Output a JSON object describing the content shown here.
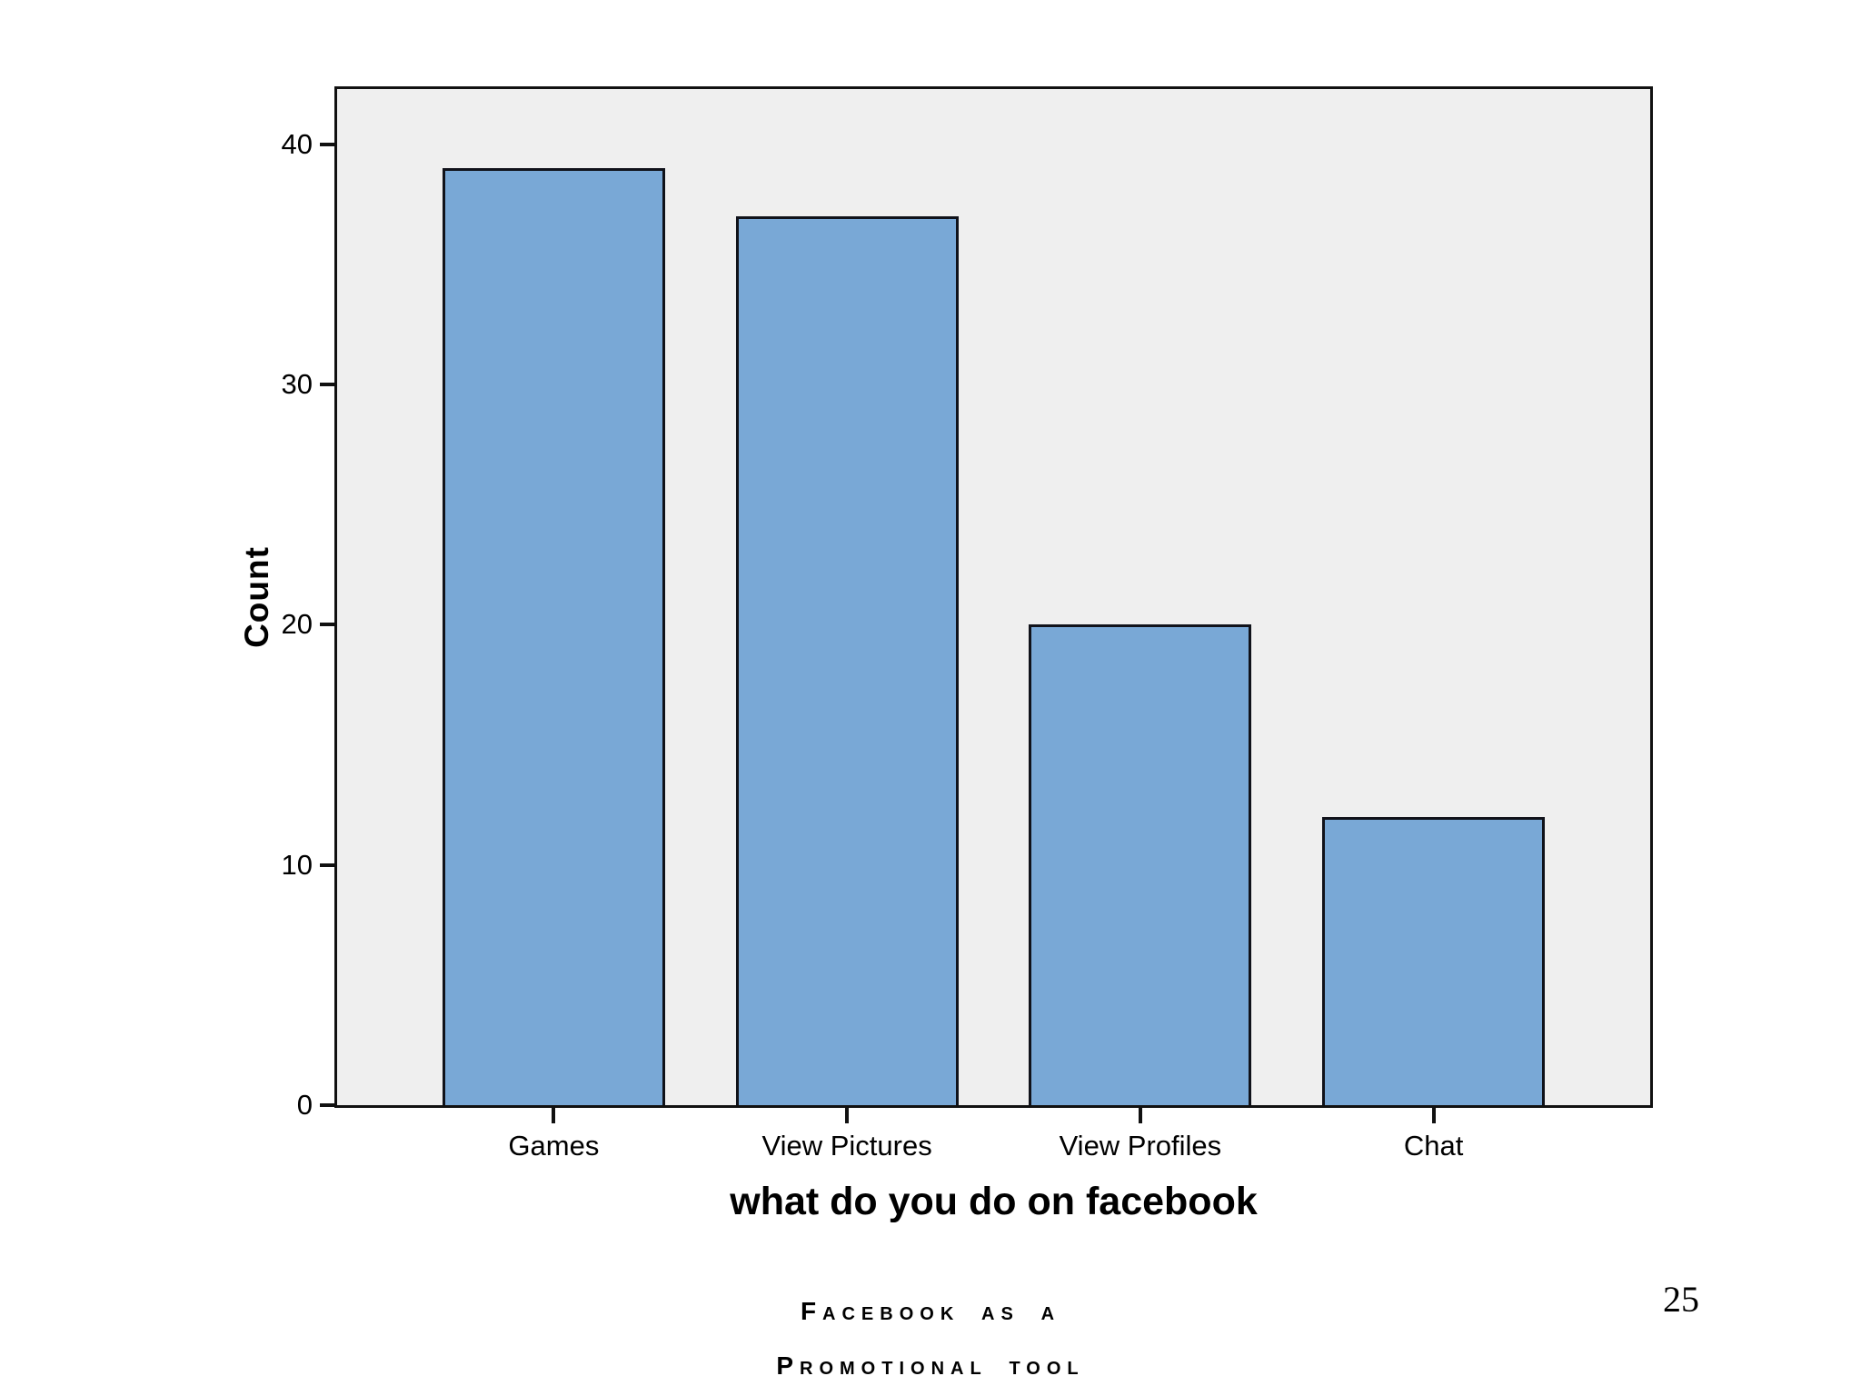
{
  "chart_data": {
    "type": "bar",
    "categories": [
      "Games",
      "View Pictures",
      "View Profiles",
      "Chat"
    ],
    "values": [
      39,
      37,
      20,
      12
    ],
    "title": "",
    "xlabel": "what do you do on facebook",
    "ylabel": "Count",
    "ylim": [
      0,
      42.3
    ],
    "yticks": [
      0,
      10,
      20,
      30,
      40
    ],
    "grid": false,
    "legend": "none",
    "bar_color": "#79a8d6",
    "bar_border_color": "#10121a",
    "plot_background": "#efefef",
    "axis_color": "#111111"
  },
  "footer": {
    "line1": "Facebook as a",
    "line2": "Promotional tool"
  },
  "page": {
    "number": "25"
  }
}
